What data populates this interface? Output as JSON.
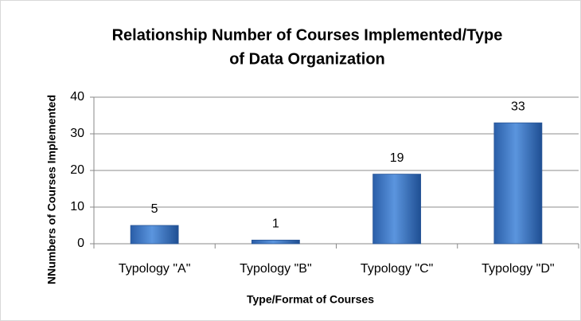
{
  "chart_data": {
    "type": "bar",
    "title": [
      "Relationship Number of Courses Implemented/Type",
      "of Data Organization"
    ],
    "x_label": "Type/Format of Courses",
    "y_label": "NNumbers of Courses Implemented",
    "categories": [
      "Typology \"A\"",
      "Typology \"B\"",
      "Typology \"C\"",
      "Typology \"D\""
    ],
    "values": [
      5,
      1,
      19,
      33
    ],
    "color": "#3f7fd0",
    "ylim": [
      0,
      40
    ],
    "yticks": [
      0,
      10,
      20,
      30,
      40
    ],
    "grid": true,
    "data_labels": true
  }
}
